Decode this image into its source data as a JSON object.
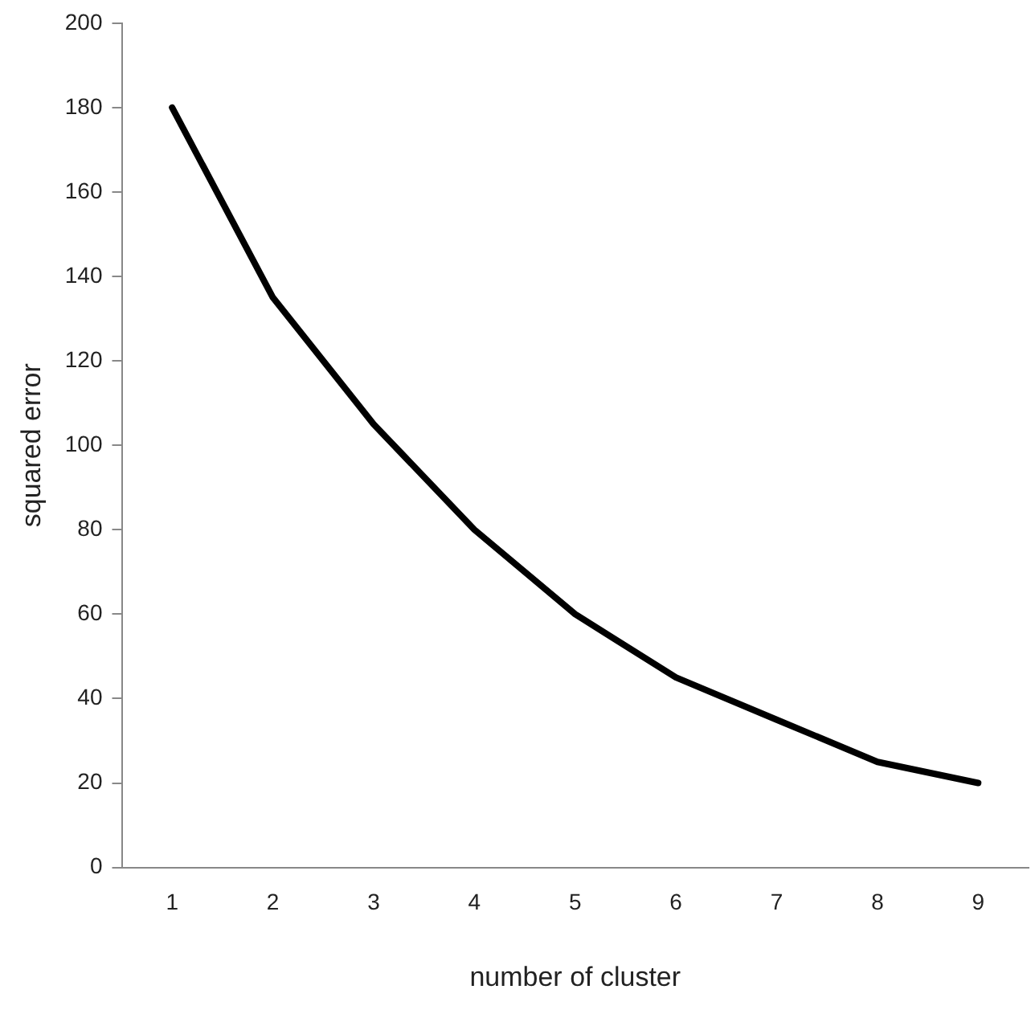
{
  "chart_data": {
    "type": "line",
    "xlabel": "number of cluster",
    "ylabel": "squared error",
    "categories": [
      "1",
      "2",
      "3",
      "4",
      "5",
      "6",
      "7",
      "8",
      "9"
    ],
    "series": [
      {
        "color": "#000000",
        "values": [
          180,
          135,
          105,
          80,
          60,
          45,
          35,
          25,
          20
        ]
      }
    ],
    "ylim": [
      0,
      200
    ],
    "yticks": [
      0,
      20,
      40,
      60,
      80,
      100,
      120,
      140,
      160,
      180,
      200
    ],
    "grid": false,
    "legend": false,
    "marker": "none",
    "line_style": "solid"
  }
}
